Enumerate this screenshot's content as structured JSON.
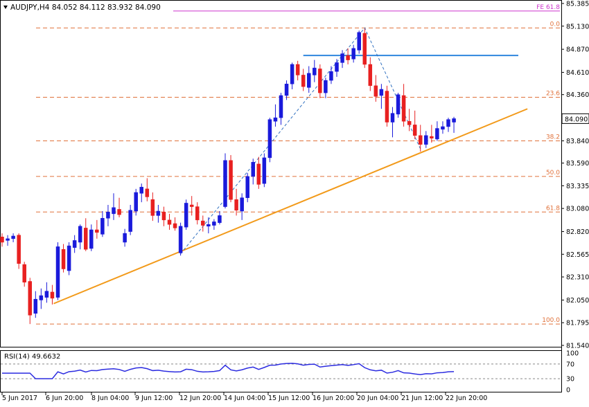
{
  "header": {
    "symbol_info": "AUDJPY,H4  84.052 84.112 83.932 84.090"
  },
  "rsi": {
    "label": "RSI(14) 49.6632",
    "ticks": [
      100,
      70,
      30,
      0
    ],
    "visible_ticks": [
      "100",
      "70",
      "30",
      "0"
    ],
    "last": 49.6632
  },
  "colors": {
    "bull": "#1a1adb",
    "bear": "#e82020",
    "fib": "#e0713a",
    "trend": "#f29a1a",
    "fe": "#cc33cc",
    "hline": "#2e86de",
    "zigzag": "#3070c0",
    "rsi": "#2b2be0"
  },
  "chart_data": {
    "type": "candlestick",
    "symbol": "AUDJPY",
    "timeframe": "H4",
    "ohlc_last": {
      "open": 84.052,
      "high": 84.112,
      "low": 83.932,
      "close": 84.09
    },
    "price_axis": {
      "ticks": [
        85.385,
        85.13,
        84.87,
        84.61,
        84.36,
        84.09,
        83.84,
        83.59,
        83.335,
        83.08,
        82.82,
        82.565,
        82.31,
        82.05,
        81.795,
        81.54
      ],
      "labels": [
        "85.385",
        "85.130",
        "84.870",
        "84.610",
        "84.360",
        "84.090",
        "83.840",
        "83.590",
        "83.335",
        "83.080",
        "82.820",
        "82.565",
        "82.310",
        "82.050",
        "81.795",
        "81.540"
      ],
      "ylim": [
        81.5,
        85.4
      ],
      "current_price_label": "84.090"
    },
    "time_axis": {
      "labels": [
        "5 Jun 2017",
        "6 Jun 20:00",
        "8 Jun 04:00",
        "9 Jun 12:00",
        "12 Jun 20:00",
        "14 Jun 04:00",
        "15 Jun 12:00",
        "16 Jun 20:00",
        "20 Jun 04:00",
        "21 Jun 12:00",
        "22 Jun 20:00"
      ]
    },
    "fibonacci": [
      {
        "label": "0.0",
        "price": 85.11
      },
      {
        "label": "23.6",
        "price": 84.33
      },
      {
        "label": "38.2",
        "price": 83.84
      },
      {
        "label": "50.0",
        "price": 83.44
      },
      {
        "label": "61.8",
        "price": 83.04
      },
      {
        "label": "100.0",
        "price": 81.78
      }
    ],
    "fib_expansion": {
      "label": "FE 61.8",
      "price": 85.3
    },
    "horizontal_line": {
      "price": 84.8
    },
    "candles": [
      [
        82.76,
        82.8,
        82.65,
        82.7
      ],
      [
        82.72,
        82.78,
        82.66,
        82.74
      ],
      [
        82.74,
        82.8,
        82.7,
        82.77
      ],
      [
        82.78,
        82.8,
        82.4,
        82.46
      ],
      [
        82.45,
        82.48,
        82.2,
        82.25
      ],
      [
        82.26,
        82.3,
        81.78,
        81.88
      ],
      [
        81.9,
        82.15,
        81.85,
        82.06
      ],
      [
        82.05,
        82.18,
        81.95,
        82.1
      ],
      [
        82.08,
        82.25,
        82.02,
        82.15
      ],
      [
        82.14,
        82.22,
        82.0,
        82.07
      ],
      [
        82.08,
        82.7,
        82.05,
        82.65
      ],
      [
        82.62,
        82.68,
        82.36,
        82.4
      ],
      [
        82.38,
        82.7,
        82.33,
        82.66
      ],
      [
        82.64,
        82.78,
        82.58,
        82.72
      ],
      [
        82.7,
        82.9,
        82.62,
        82.88
      ],
      [
        82.86,
        82.97,
        82.6,
        82.62
      ],
      [
        82.63,
        82.9,
        82.6,
        82.84
      ],
      [
        82.84,
        82.95,
        82.74,
        82.81
      ],
      [
        82.79,
        83.05,
        82.76,
        82.97
      ],
      [
        82.97,
        83.12,
        82.88,
        83.04
      ],
      [
        83.02,
        83.25,
        82.95,
        83.09
      ],
      [
        83.07,
        83.2,
        82.98,
        83.01
      ],
      [
        82.7,
        82.85,
        82.65,
        82.8
      ],
      [
        82.82,
        83.12,
        82.78,
        83.06
      ],
      [
        83.05,
        83.3,
        83.0,
        83.26
      ],
      [
        83.25,
        83.36,
        83.15,
        83.32
      ],
      [
        83.3,
        83.42,
        83.16,
        83.21
      ],
      [
        83.18,
        83.26,
        82.94,
        83.0
      ],
      [
        83.0,
        83.12,
        82.92,
        83.05
      ],
      [
        83.04,
        83.1,
        82.88,
        82.95
      ],
      [
        82.95,
        83.02,
        82.84,
        82.9
      ],
      [
        82.91,
        82.98,
        82.83,
        82.86
      ],
      [
        82.58,
        82.92,
        82.55,
        82.88
      ],
      [
        82.87,
        83.18,
        82.84,
        83.14
      ],
      [
        83.12,
        83.22,
        83.0,
        83.1
      ],
      [
        83.1,
        83.15,
        82.9,
        82.95
      ],
      [
        82.94,
        83.0,
        82.82,
        82.89
      ],
      [
        82.88,
        82.98,
        82.8,
        82.9
      ],
      [
        82.89,
        82.96,
        82.84,
        82.93
      ],
      [
        82.92,
        83.05,
        82.9,
        83.0
      ],
      [
        83.1,
        83.7,
        83.08,
        83.62
      ],
      [
        83.62,
        83.68,
        83.15,
        83.18
      ],
      [
        83.18,
        83.3,
        83.0,
        83.06
      ],
      [
        83.05,
        83.25,
        82.95,
        83.2
      ],
      [
        83.2,
        83.48,
        83.15,
        83.44
      ],
      [
        83.44,
        83.64,
        83.35,
        83.6
      ],
      [
        83.58,
        83.66,
        83.3,
        83.35
      ],
      [
        83.36,
        83.7,
        83.32,
        83.65
      ],
      [
        83.65,
        84.1,
        83.6,
        84.08
      ],
      [
        84.06,
        84.25,
        84.0,
        84.1
      ],
      [
        84.1,
        84.38,
        84.02,
        84.35
      ],
      [
        84.35,
        84.52,
        84.3,
        84.48
      ],
      [
        84.48,
        84.72,
        84.42,
        84.7
      ],
      [
        84.7,
        84.74,
        84.52,
        84.58
      ],
      [
        84.58,
        84.65,
        84.4,
        84.45
      ],
      [
        84.44,
        84.68,
        84.38,
        84.6
      ],
      [
        84.58,
        84.75,
        84.5,
        84.66
      ],
      [
        84.65,
        84.7,
        84.32,
        84.38
      ],
      [
        84.38,
        84.55,
        84.32,
        84.52
      ],
      [
        84.52,
        84.68,
        84.48,
        84.62
      ],
      [
        84.62,
        84.76,
        84.56,
        84.72
      ],
      [
        84.72,
        84.86,
        84.66,
        84.82
      ],
      [
        84.8,
        84.88,
        84.7,
        84.75
      ],
      [
        84.76,
        84.92,
        84.72,
        84.88
      ],
      [
        84.86,
        85.08,
        84.82,
        85.06
      ],
      [
        85.05,
        85.1,
        84.66,
        84.7
      ],
      [
        84.7,
        84.78,
        84.4,
        84.46
      ],
      [
        84.46,
        84.58,
        84.28,
        84.34
      ],
      [
        84.35,
        84.48,
        84.2,
        84.42
      ],
      [
        84.4,
        84.46,
        84.0,
        84.05
      ],
      [
        84.05,
        84.22,
        83.88,
        84.15
      ],
      [
        84.14,
        84.38,
        84.1,
        84.36
      ],
      [
        84.35,
        84.48,
        84.0,
        84.06
      ],
      [
        84.06,
        84.2,
        83.95,
        84.02
      ],
      [
        84.02,
        84.18,
        83.86,
        83.9
      ],
      [
        83.9,
        84.02,
        83.72,
        83.8
      ],
      [
        83.8,
        83.95,
        83.76,
        83.9
      ],
      [
        83.89,
        84.02,
        83.82,
        83.87
      ],
      [
        83.86,
        84.06,
        83.84,
        83.98
      ],
      [
        83.97,
        84.06,
        83.92,
        84.0
      ],
      [
        84.0,
        84.1,
        83.94,
        84.08
      ],
      [
        84.05,
        84.11,
        83.93,
        84.09
      ]
    ],
    "trendline": {
      "from": [
        82.01,
        8
      ],
      "to": [
        84.2,
        83
      ]
    },
    "zigzag": [
      [
        82.57,
        32
      ],
      [
        85.11,
        65
      ],
      [
        83.75,
        75
      ]
    ]
  }
}
